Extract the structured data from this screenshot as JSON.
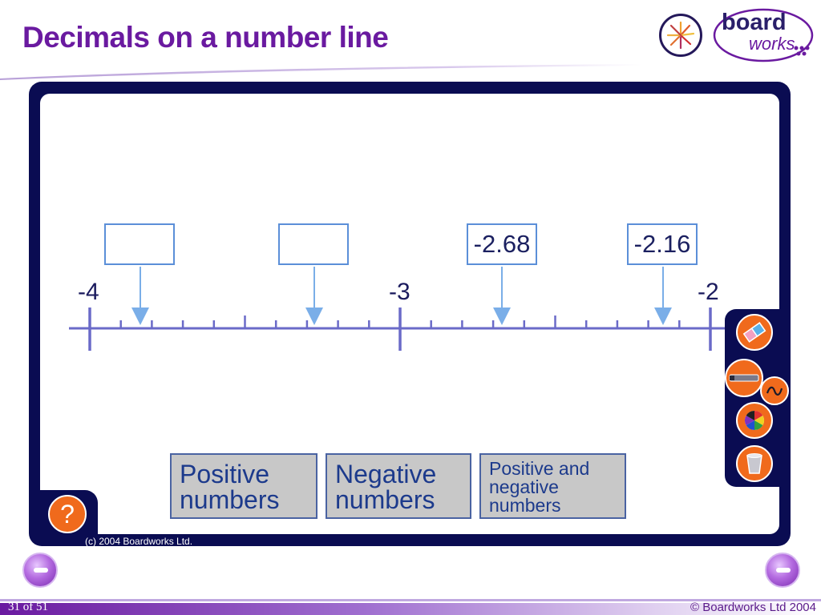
{
  "header": {
    "title": "Decimals on a number line",
    "logo_board": "board",
    "logo_works": "works"
  },
  "number_line": {
    "min": -4,
    "max": -2,
    "tick_labels": [
      "-4",
      "-3",
      "-2"
    ],
    "answer_boxes": [
      {
        "value": ""
      },
      {
        "value": ""
      },
      {
        "value": "-2.68"
      },
      {
        "value": "-2.16"
      }
    ]
  },
  "mode_buttons": {
    "positive": {
      "line1": "Positive",
      "line2": "numbers"
    },
    "negative": {
      "line1": "Negative",
      "line2": "numbers"
    },
    "both": {
      "line1": "Positive and",
      "line2": "negative",
      "line3": "numbers"
    }
  },
  "help": {
    "label": "?"
  },
  "panel_copyright": "(c) 2004 Boardworks Ltd.",
  "toolbar": {
    "items": [
      "eraser-icon",
      "pen-icon",
      "squiggle-icon",
      "color-wheel-icon",
      "trash-bin-icon"
    ]
  },
  "footer": {
    "page": "31 of 51",
    "copyright": "© Boardworks Ltd 2004"
  },
  "colors": {
    "title": "#6a1aa0",
    "frame": "#0a0c52",
    "accent_orange": "#f06a1c",
    "line": "#6a6ac8",
    "box_border": "#5b8fd8"
  }
}
